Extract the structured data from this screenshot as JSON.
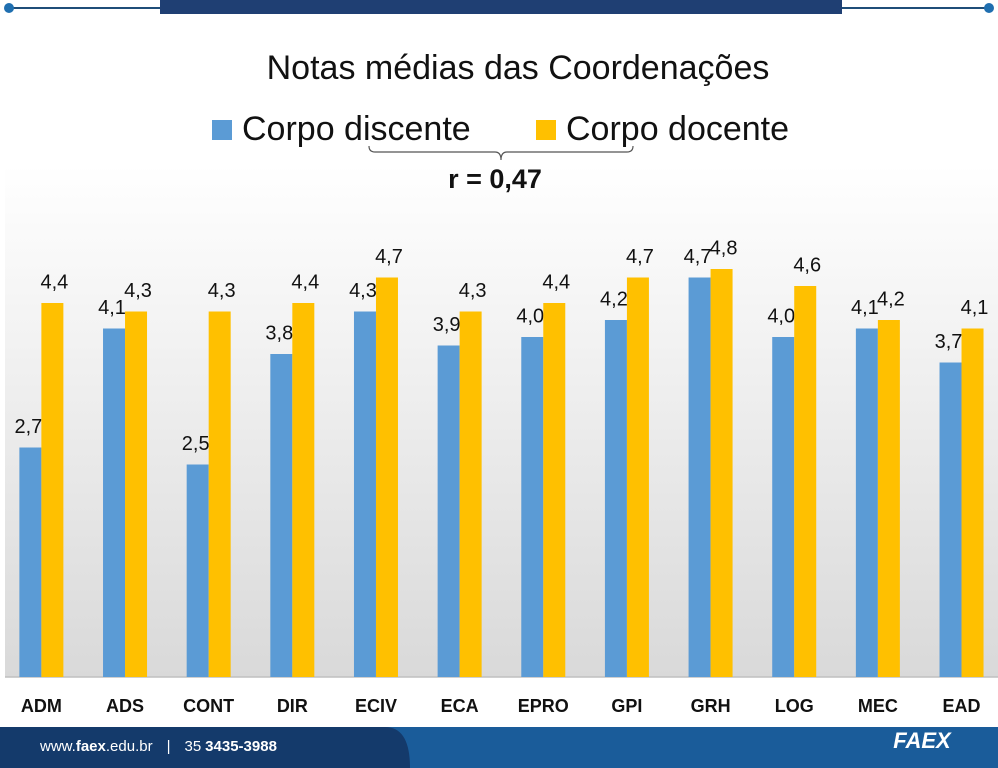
{
  "chart_data": {
    "type": "bar",
    "title": "Notas médias das Coordenações",
    "annotation": "r = 0,47",
    "categories": [
      "ADM",
      "ADS",
      "CONT",
      "DIR",
      "ECIV",
      "ECA",
      "EPRO",
      "GPI",
      "GRH",
      "LOG",
      "MEC",
      "EAD"
    ],
    "series": [
      {
        "name": "Corpo discente",
        "color": "#5b9bd5",
        "values": [
          2.7,
          4.1,
          2.5,
          3.8,
          4.3,
          3.9,
          4.0,
          4.2,
          4.7,
          4.0,
          4.1,
          3.7
        ],
        "value_labels": [
          "2,7",
          "4,1",
          "2,5",
          "3,8",
          "4,3",
          "3,9",
          "4,0",
          "4,2",
          "4,7",
          "4,0",
          "4,1",
          "3,7"
        ]
      },
      {
        "name": "Corpo docente",
        "color": "#ffc000",
        "values": [
          4.4,
          4.3,
          4.3,
          4.4,
          4.7,
          4.3,
          4.4,
          4.7,
          4.8,
          4.6,
          4.2,
          4.1
        ],
        "value_labels": [
          "4,4",
          "4,3",
          "4,3",
          "4,4",
          "4,7",
          "4,3",
          "4,4",
          "4,7",
          "4,8",
          "4,6",
          "4,2",
          "4,1"
        ]
      }
    ],
    "ylim": [
      0,
      6
    ],
    "legend": "top"
  },
  "footer": {
    "website_prefix": "www.",
    "website_name": "faex",
    "website_suffix": ".edu.br",
    "separator": "|",
    "phone_area": "35",
    "phone_number": "3435-3988",
    "logo": "FAEX"
  }
}
